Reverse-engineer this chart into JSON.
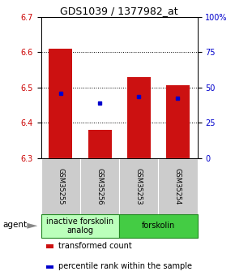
{
  "title": "GDS1039 / 1377982_at",
  "samples": [
    "GSM35255",
    "GSM35256",
    "GSM35253",
    "GSM35254"
  ],
  "bar_bottoms": [
    6.3,
    6.3,
    6.3,
    6.3
  ],
  "bar_tops": [
    6.61,
    6.38,
    6.53,
    6.505
  ],
  "percentile_values": [
    6.484,
    6.455,
    6.474,
    6.469
  ],
  "groups": [
    {
      "label": "inactive forskolin\nanalog",
      "samples": [
        0,
        1
      ],
      "color": "#bbffbb"
    },
    {
      "label": "forskolin",
      "samples": [
        2,
        3
      ],
      "color": "#44cc44"
    }
  ],
  "ylim": [
    6.3,
    6.7
  ],
  "yticks": [
    6.3,
    6.4,
    6.5,
    6.6,
    6.7
  ],
  "y2ticks": [
    0,
    25,
    50,
    75,
    100
  ],
  "y2labels": [
    "0",
    "25",
    "50",
    "75",
    "100%"
  ],
  "bar_color": "#cc1111",
  "dot_color": "#0000cc",
  "bar_width": 0.6,
  "left_color": "#cc0000",
  "right_color": "#0000cc",
  "title_fontsize": 9,
  "tick_fontsize": 7,
  "sample_fontsize": 6,
  "group_fontsize": 7,
  "legend_fontsize": 7,
  "agent_label": "agent",
  "legend_items": [
    {
      "color": "#cc1111",
      "label": "transformed count"
    },
    {
      "color": "#0000cc",
      "label": "percentile rank within the sample"
    }
  ]
}
